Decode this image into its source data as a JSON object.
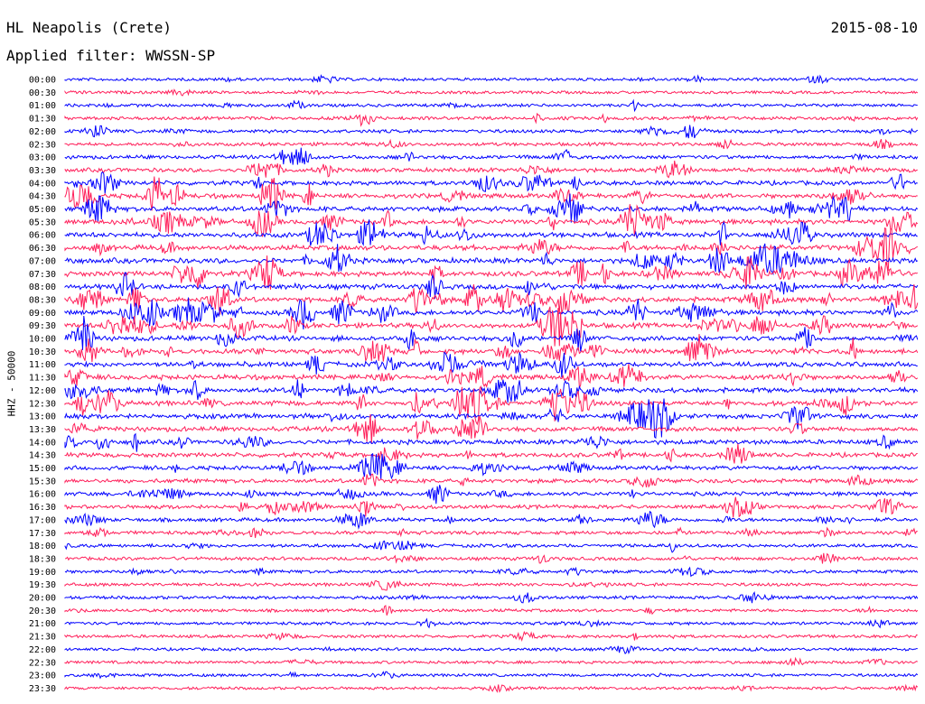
{
  "header": {
    "station": "HL Neapolis (Crete)",
    "date": "2015-08-10",
    "filter": "Applied filter: WWSSN-SP",
    "channel": "HHZ - 50000"
  },
  "colors": {
    "even_line": "#0000ff",
    "odd_line": "#ff1f5a",
    "background": "#ffffff",
    "text": "#000000"
  },
  "chart_data": {
    "type": "helicorder",
    "title": "HL Neapolis (Crete)",
    "ylabel": "HHZ - 50000",
    "rows": [
      "00:00",
      "00:30",
      "01:00",
      "01:30",
      "02:00",
      "02:30",
      "03:00",
      "03:30",
      "04:00",
      "04:30",
      "05:00",
      "05:30",
      "06:00",
      "06:30",
      "07:00",
      "07:30",
      "08:00",
      "08:30",
      "09:00",
      "09:30",
      "10:00",
      "10:30",
      "11:00",
      "11:30",
      "12:00",
      "12:30",
      "13:00",
      "13:30",
      "14:00",
      "14:30",
      "15:00",
      "15:30",
      "16:00",
      "16:30",
      "17:00",
      "17:30",
      "18:00",
      "18:30",
      "19:00",
      "19:30",
      "20:00",
      "20:30",
      "21:00",
      "21:30",
      "22:00",
      "22:30",
      "23:00",
      "23:30"
    ],
    "row_minutes": 30,
    "activity_level": [
      0.2,
      0.2,
      0.25,
      0.3,
      0.35,
      0.35,
      0.45,
      0.55,
      0.65,
      0.75,
      0.8,
      0.85,
      0.85,
      0.85,
      0.85,
      0.85,
      0.85,
      0.85,
      0.85,
      0.8,
      0.8,
      0.8,
      0.8,
      0.8,
      0.8,
      0.8,
      0.75,
      0.75,
      0.7,
      0.65,
      0.6,
      0.55,
      0.55,
      0.5,
      0.45,
      0.4,
      0.35,
      0.35,
      0.3,
      0.3,
      0.28,
      0.26,
      0.24,
      0.22,
      0.2,
      0.2,
      0.18,
      0.18
    ]
  }
}
